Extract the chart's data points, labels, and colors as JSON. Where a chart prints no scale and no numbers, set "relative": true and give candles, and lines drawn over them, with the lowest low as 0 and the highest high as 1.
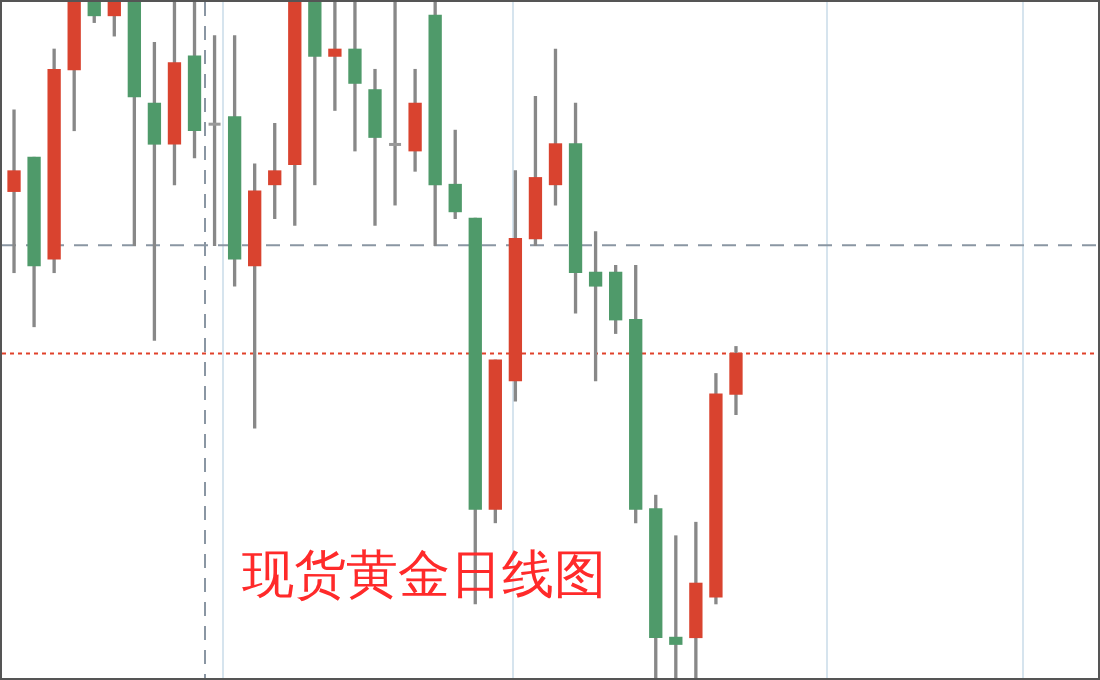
{
  "chart_data": {
    "type": "candlestick",
    "title": "现货黄金日线图",
    "relative": true,
    "categories": [
      null,
      null,
      null,
      null,
      null,
      null,
      null,
      null,
      null,
      null,
      null,
      null,
      null,
      null,
      null,
      null,
      null,
      null,
      null,
      null,
      null,
      null,
      null,
      null,
      null,
      null,
      null,
      null,
      null,
      null,
      null,
      null,
      null,
      null,
      null,
      null,
      null
    ],
    "ohlc": [
      [
        0.72,
        0.84,
        0.6,
        0.75
      ],
      [
        0.77,
        0.77,
        0.52,
        0.61
      ],
      [
        0.62,
        0.93,
        0.6,
        0.9
      ],
      [
        0.9,
        1,
        0.81,
        1
      ],
      [
        1,
        1,
        0.97,
        0.98
      ],
      [
        0.98,
        1,
        0.95,
        1
      ],
      [
        1,
        1,
        0.64,
        0.86
      ],
      [
        0.85,
        0.94,
        0.5,
        0.79
      ],
      [
        0.79,
        1,
        0.73,
        0.91
      ],
      [
        0.92,
        1,
        0.77,
        0.81
      ],
      [
        0.82,
        0.95,
        0.64,
        0.82
      ],
      [
        0.83,
        0.95,
        0.58,
        0.62
      ],
      [
        0.61,
        0.76,
        0.37,
        0.72
      ],
      [
        0.73,
        0.82,
        0.68,
        0.75
      ],
      [
        0.76,
        1,
        0.67,
        1
      ],
      [
        1,
        1,
        0.73,
        0.92
      ],
      [
        0.92,
        1,
        0.84,
        0.93
      ],
      [
        0.93,
        1,
        0.78,
        0.88
      ],
      [
        0.87,
        0.9,
        0.67,
        0.8
      ],
      [
        0.79,
        1,
        0.7,
        0.79
      ],
      [
        0.78,
        0.9,
        0.75,
        0.85
      ],
      [
        0.98,
        1,
        0.64,
        0.73
      ],
      [
        0.73,
        0.81,
        0.68,
        0.69
      ],
      [
        0.68,
        0.68,
        0.11,
        0.25
      ],
      [
        0.25,
        0.47,
        0.23,
        0.47
      ],
      [
        0.44,
        0.75,
        0.41,
        0.65
      ],
      [
        0.65,
        0.86,
        0.64,
        0.74
      ],
      [
        0.73,
        0.93,
        0.7,
        0.79
      ],
      [
        0.79,
        0.85,
        0.54,
        0.6
      ],
      [
        0.6,
        0.66,
        0.44,
        0.58
      ],
      [
        0.6,
        0.61,
        0.51,
        0.53
      ],
      [
        0.53,
        0.61,
        0.23,
        0.25
      ],
      [
        0.25,
        0.27,
        0,
        0.06
      ],
      [
        0.06,
        0.21,
        0,
        0.05
      ],
      [
        0.06,
        0.23,
        0,
        0.14
      ],
      [
        0.12,
        0.45,
        0.11,
        0.42
      ],
      [
        0.42,
        0.49,
        0.39,
        0.48
      ]
    ],
    "colors": [
      "#d9432f",
      "#4f9a6a",
      "#d9432f",
      "#d9432f",
      "#4f9a6a",
      "#d9432f",
      "#4f9a6a",
      "#4f9a6a",
      "#d9432f",
      "#4f9a6a",
      "#999999",
      "#4f9a6a",
      "#d9432f",
      "#d9432f",
      "#d9432f",
      "#4f9a6a",
      "#d9432f",
      "#4f9a6a",
      "#4f9a6a",
      "#999999",
      "#d9432f",
      "#4f9a6a",
      "#4f9a6a",
      "#4f9a6a",
      "#d9432f",
      "#d9432f",
      "#d9432f",
      "#d9432f",
      "#4f9a6a",
      "#4f9a6a",
      "#4f9a6a",
      "#4f9a6a",
      "#4f9a6a",
      "#4f9a6a",
      "#d9432f",
      "#d9432f",
      "#d9432f"
    ],
    "ref_lines": [
      {
        "axis": "y",
        "value": 0.64,
        "color": "#8a96a3",
        "line_style": "dashed"
      },
      {
        "axis": "y",
        "value": 0.48,
        "color": "#e0412a",
        "line_style": "dotted"
      }
    ]
  }
}
